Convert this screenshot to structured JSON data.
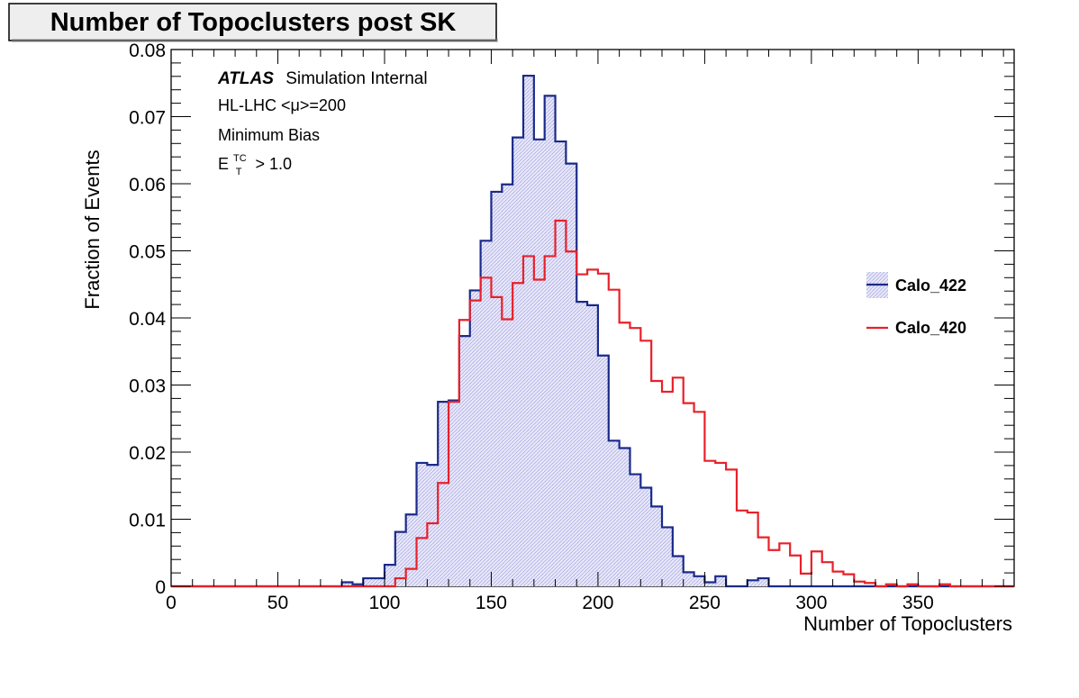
{
  "chart_data": {
    "type": "histogram",
    "title": "Number of Topoclusters post SK",
    "xlabel": "Number of Topoclusters",
    "ylabel": "Fraction of Events",
    "xlim": [
      0,
      395
    ],
    "ylim": [
      0,
      0.08
    ],
    "bin_width": 5,
    "bin_edges_start": 80,
    "x_tick_labels": [
      "0",
      "50",
      "100",
      "150",
      "200",
      "250",
      "300",
      "350"
    ],
    "x_tick_values": [
      0,
      50,
      100,
      150,
      200,
      250,
      300,
      350
    ],
    "y_tick_labels": [
      "0",
      "0.01",
      "0.02",
      "0.03",
      "0.04",
      "0.05",
      "0.06",
      "0.07",
      "0.08"
    ],
    "y_tick_values": [
      0,
      0.01,
      0.02,
      0.03,
      0.04,
      0.05,
      0.06,
      0.07,
      0.08
    ],
    "annotations": {
      "atlas": "ATLAS",
      "atlas_suffix": "Simulation Internal",
      "line2": "HL-LHC <μ>=200",
      "line3": "Minimum Bias",
      "line4_base": "E",
      "line4_sup": "TC",
      "line4_sub": "T",
      "line4_rest": "> 1.0"
    },
    "legend_position": "right",
    "series": [
      {
        "name": "Calo_422",
        "color": "#1a2a8a",
        "fill": "hatched-light-blue",
        "values": [
          0.0006,
          0.0003,
          0.0012,
          0.0012,
          0.0032,
          0.0081,
          0.0107,
          0.0184,
          0.0181,
          0.0275,
          0.0277,
          0.0373,
          0.0441,
          0.0515,
          0.0588,
          0.0599,
          0.0669,
          0.0761,
          0.0666,
          0.0731,
          0.0663,
          0.063,
          0.0424,
          0.0419,
          0.0344,
          0.0217,
          0.0206,
          0.0167,
          0.0147,
          0.0119,
          0.0088,
          0.0045,
          0.0021,
          0.0015,
          0.0006,
          0.0015,
          0.0,
          0.0,
          0.0009,
          0.0012,
          0.0,
          0.0,
          0.0,
          0.0,
          0.0
        ]
      },
      {
        "name": "Calo_420",
        "color": "#e8202a",
        "values": [
          0.0,
          0.0,
          0.0,
          0.0,
          0.0,
          0.0012,
          0.0026,
          0.0072,
          0.0094,
          0.0154,
          0.0275,
          0.0397,
          0.0426,
          0.046,
          0.0431,
          0.0398,
          0.0452,
          0.0492,
          0.0457,
          0.0492,
          0.0545,
          0.0499,
          0.0465,
          0.0472,
          0.0466,
          0.0442,
          0.0393,
          0.0385,
          0.0366,
          0.0306,
          0.029,
          0.0311,
          0.0273,
          0.026,
          0.0187,
          0.0184,
          0.0174,
          0.0113,
          0.011,
          0.0073,
          0.0054,
          0.0064,
          0.0046,
          0.0019,
          0.0052,
          0.0036,
          0.0022,
          0.0018,
          0.0007,
          0.0005,
          0.0,
          0.0003,
          0.0,
          0.0003,
          0.0,
          0.0,
          0.0003,
          0.0,
          0.0,
          0.0
        ]
      }
    ]
  }
}
